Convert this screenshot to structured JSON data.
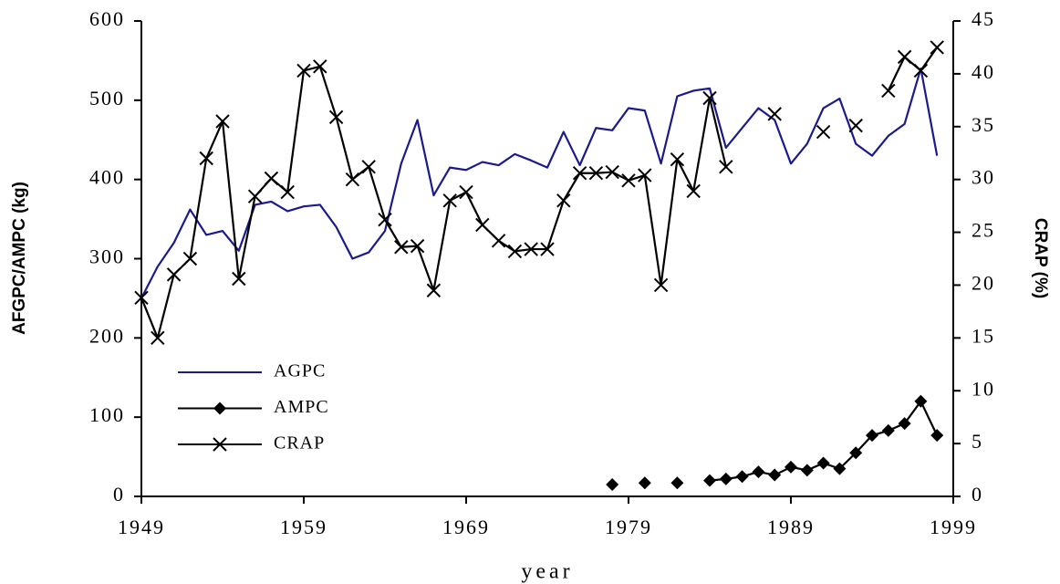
{
  "chart_data": {
    "type": "line",
    "x_label": "year",
    "y_label": "AFGPC/AMPC (kg)",
    "y2_label": "CRAP (%)",
    "x": [
      1949,
      1950,
      1951,
      1952,
      1953,
      1954,
      1955,
      1956,
      1957,
      1958,
      1959,
      1960,
      1961,
      1962,
      1963,
      1964,
      1965,
      1966,
      1967,
      1968,
      1969,
      1970,
      1971,
      1972,
      1973,
      1974,
      1975,
      1976,
      1977,
      1978,
      1979,
      1980,
      1981,
      1982,
      1983,
      1984,
      1985,
      1986,
      1987,
      1988,
      1989,
      1990,
      1991,
      1992,
      1993,
      1994,
      1995,
      1996,
      1997,
      1998
    ],
    "xlim": [
      1949,
      1999
    ],
    "xticks": [
      1949,
      1959,
      1969,
      1979,
      1989,
      1999
    ],
    "ylim": [
      0,
      600
    ],
    "yticks": [
      0,
      100,
      200,
      300,
      400,
      500,
      600
    ],
    "y2lim": [
      0,
      45
    ],
    "y2ticks": [
      0,
      5,
      10,
      15,
      20,
      25,
      30,
      35,
      40,
      45
    ],
    "grid": false,
    "legend_position": "left",
    "series": [
      {
        "name": "AGPC",
        "color": "#1a1a8c",
        "marker": "none",
        "axis": "y",
        "values": [
          250,
          290,
          320,
          362,
          330,
          335,
          310,
          368,
          372,
          360,
          366,
          368,
          340,
          300,
          308,
          335,
          420,
          475,
          380,
          415,
          412,
          422,
          418,
          432,
          424,
          415,
          460,
          418,
          465,
          462,
          490,
          487,
          420,
          505,
          512,
          515,
          440,
          465,
          490,
          475,
          420,
          445,
          490,
          502,
          445,
          430,
          455,
          470,
          540,
          430
        ]
      },
      {
        "name": "AMPC",
        "color": "#000000",
        "marker": "diamond",
        "axis": "y",
        "values": [
          null,
          null,
          null,
          null,
          null,
          null,
          null,
          null,
          null,
          null,
          null,
          null,
          null,
          null,
          null,
          null,
          null,
          null,
          null,
          null,
          null,
          null,
          null,
          null,
          null,
          null,
          null,
          null,
          null,
          15,
          null,
          17,
          null,
          17,
          null,
          20,
          22,
          25,
          31,
          27,
          37,
          33,
          42,
          35,
          55,
          77,
          83,
          92,
          120,
          77
        ]
      },
      {
        "name": "CRAP",
        "color": "#000000",
        "marker": "x",
        "axis": "y2",
        "values": [
          18.8,
          15,
          21,
          22.5,
          32,
          35.5,
          20.6,
          28.4,
          30.1,
          28.8,
          40.3,
          40.7,
          35.9,
          30,
          31.2,
          26.2,
          23.6,
          23.7,
          19.5,
          28,
          28.8,
          25.7,
          24.2,
          23.2,
          23.4,
          23.4,
          28,
          30.6,
          30.6,
          30.7,
          29.9,
          30.4,
          20,
          31.9,
          28.9,
          37.7,
          31.2,
          null,
          null,
          36.2,
          null,
          null,
          34.5,
          null,
          35.1,
          null,
          38.4,
          41.6,
          40.3,
          42.5
        ]
      }
    ]
  }
}
